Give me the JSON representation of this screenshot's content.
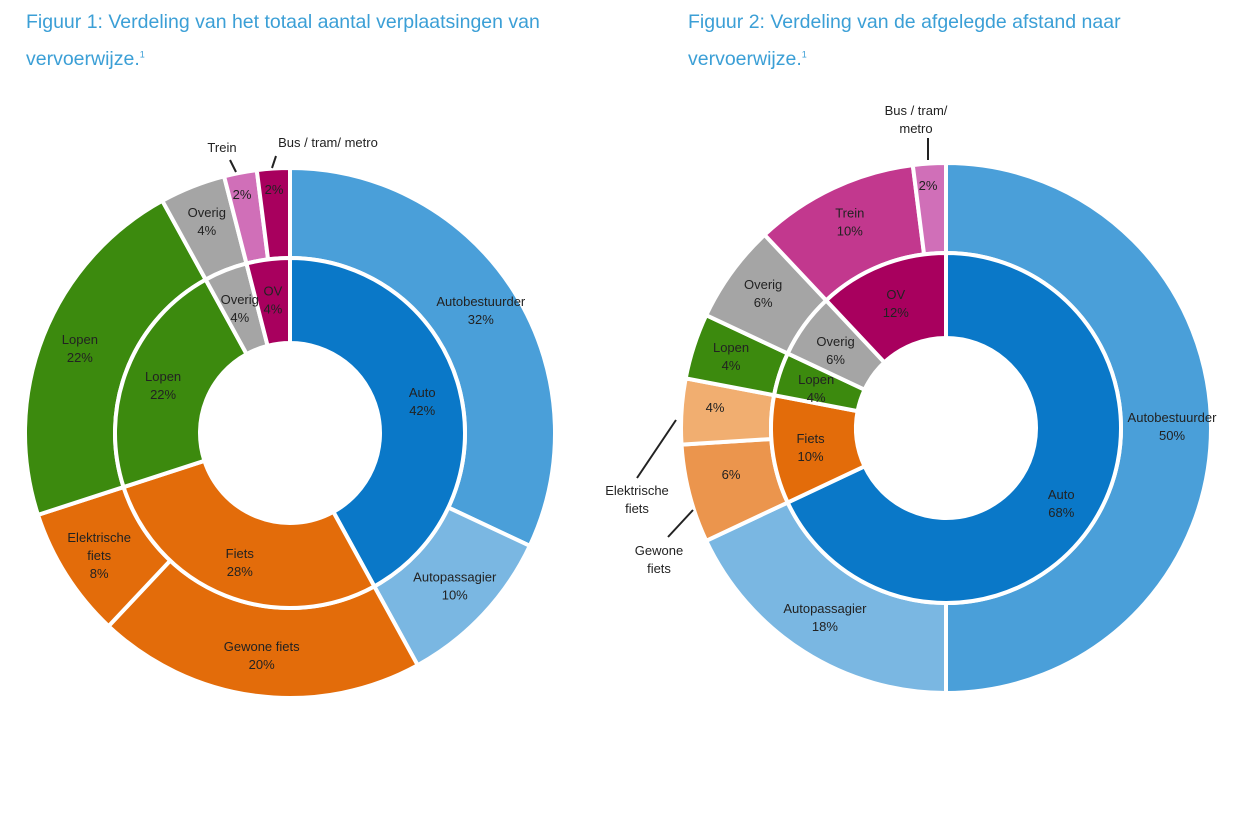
{
  "chart_data": [
    {
      "type": "pie",
      "title": "Figuur 1: Verdeling van het totaal aantal verplaatsingen van vervoerwijze.",
      "footnote_marker": "1",
      "inner_ring": [
        {
          "label": "Auto",
          "value": 42,
          "value_label": "42%",
          "color": "#0a78c8"
        },
        {
          "label": "Fiets",
          "value": 28,
          "value_label": "28%",
          "color": "#e36c0a"
        },
        {
          "label": "Lopen",
          "value": 22,
          "value_label": "22%",
          "color": "#3c8a0e"
        },
        {
          "label": "Overig",
          "value": 4,
          "value_label": "4%",
          "color": "#a5a5a5"
        },
        {
          "label": "OV",
          "value": 4,
          "value_label": "4%",
          "color": "#a8005e"
        }
      ],
      "outer_ring": [
        {
          "label": "Autobestuurder",
          "value": 32,
          "value_label": "32%",
          "color": "#4a9fd9"
        },
        {
          "label": "Autopassagier",
          "value": 10,
          "value_label": "10%",
          "color": "#7ab7e2"
        },
        {
          "label": "Gewone fiets",
          "value": 20,
          "value_label": "20%",
          "color": "#e36c0a"
        },
        {
          "label": "Elektrische fiets",
          "value": 8,
          "value_label": "8%",
          "color": "#e36c0a"
        },
        {
          "label": "Lopen",
          "value": 22,
          "value_label": "22%",
          "color": "#3c8a0e"
        },
        {
          "label": "Overig",
          "value": 4,
          "value_label": "4%",
          "color": "#a5a5a5"
        },
        {
          "label": "Trein",
          "value": 2,
          "value_label": "2%",
          "color": "#d06fb8"
        },
        {
          "label": "Bus / tram/ metro",
          "value": 2,
          "value_label": "2%",
          "color": "#a8005e"
        }
      ]
    },
    {
      "type": "pie",
      "title": "Figuur 2: Verdeling van de afgelegde afstand naar vervoerwijze.",
      "footnote_marker": "1",
      "inner_ring": [
        {
          "label": "Auto",
          "value": 68,
          "value_label": "68%",
          "color": "#0a78c8"
        },
        {
          "label": "Fiets",
          "value": 10,
          "value_label": "10%",
          "color": "#e36c0a"
        },
        {
          "label": "Lopen",
          "value": 4,
          "value_label": "4%",
          "color": "#3c8a0e"
        },
        {
          "label": "Overig",
          "value": 6,
          "value_label": "6%",
          "color": "#a5a5a5"
        },
        {
          "label": "OV",
          "value": 12,
          "value_label": "12%",
          "color": "#a8005e"
        }
      ],
      "outer_ring": [
        {
          "label": "Autobestuurder",
          "value": 50,
          "value_label": "50%",
          "color": "#4a9fd9"
        },
        {
          "label": "Autopassagier",
          "value": 18,
          "value_label": "18%",
          "color": "#7ab7e2"
        },
        {
          "label": "Gewone fiets",
          "value": 6,
          "value_label": "6%",
          "color": "#eb954d"
        },
        {
          "label": "Elektrische fiets",
          "value": 4,
          "value_label": "4%",
          "color": "#f1ae70"
        },
        {
          "label": "Lopen",
          "value": 4,
          "value_label": "4%",
          "color": "#3c8a0e"
        },
        {
          "label": "Overig",
          "value": 6,
          "value_label": "6%",
          "color": "#a5a5a5"
        },
        {
          "label": "Trein",
          "value": 10,
          "value_label": "10%",
          "color": "#c2388e"
        },
        {
          "label": "Bus / tram/ metro",
          "value": 2,
          "value_label": "2%",
          "color": "#d06fb8"
        }
      ]
    }
  ]
}
